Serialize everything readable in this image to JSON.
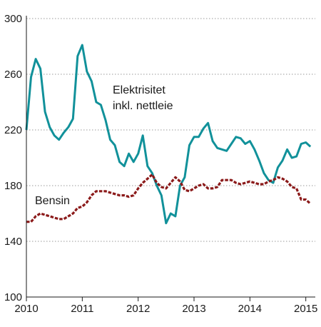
{
  "chart_data": {
    "type": "line",
    "title": "",
    "xlabel": "",
    "ylabel": "",
    "xlim": [
      2010,
      2015.17
    ],
    "ylim": [
      100,
      300
    ],
    "grid": "horizontal dotted",
    "y_ticks": [
      100,
      140,
      180,
      220,
      260,
      300
    ],
    "x_ticks": [
      2010,
      2011,
      2012,
      2013,
      2014,
      2015
    ],
    "y_tick_labels": [
      "100",
      "140",
      "180",
      "220",
      "260",
      "300"
    ],
    "x_tick_labels": [
      "2010",
      "2011",
      "2012",
      "2013",
      "2014",
      "2015"
    ],
    "annotations": [
      {
        "series": "elektrisitet",
        "lines": [
          "Elektrisitet",
          "inkl. nettleie"
        ]
      },
      {
        "series": "bensin",
        "lines": [
          "Bensin"
        ]
      }
    ],
    "series": [
      {
        "name": "Elektrisitet inkl. nettleie",
        "key": "elektrisitet",
        "color": "#11919a",
        "style": "solid",
        "x": [
          2010.0,
          2010.083,
          2010.167,
          2010.25,
          2010.333,
          2010.417,
          2010.5,
          2010.583,
          2010.667,
          2010.75,
          2010.833,
          2010.917,
          2011.0,
          2011.083,
          2011.167,
          2011.25,
          2011.333,
          2011.417,
          2011.5,
          2011.583,
          2011.667,
          2011.75,
          2011.833,
          2011.917,
          2012.0,
          2012.083,
          2012.167,
          2012.25,
          2012.333,
          2012.417,
          2012.5,
          2012.583,
          2012.667,
          2012.75,
          2012.833,
          2012.917,
          2013.0,
          2013.083,
          2013.167,
          2013.25,
          2013.333,
          2013.417,
          2013.5,
          2013.583,
          2013.667,
          2013.75,
          2013.833,
          2013.917,
          2014.0,
          2014.083,
          2014.167,
          2014.25,
          2014.333,
          2014.417,
          2014.5,
          2014.583,
          2014.667,
          2014.75,
          2014.833,
          2014.917,
          2015.0,
          2015.083
        ],
        "values": [
          220,
          258,
          271,
          264,
          233,
          222,
          216,
          213,
          218,
          222,
          228,
          273,
          281,
          262,
          255,
          240,
          238,
          227,
          213,
          209,
          197,
          194,
          203,
          197,
          203,
          216,
          194,
          189,
          180,
          173,
          153,
          160,
          158,
          180,
          186,
          209,
          215,
          215,
          221,
          225,
          212,
          207,
          206,
          205,
          210,
          215,
          214,
          210,
          212,
          206,
          198,
          189,
          184,
          182,
          193,
          198,
          206,
          200,
          201,
          210,
          211,
          208
        ]
      },
      {
        "name": "Bensin",
        "key": "bensin",
        "color": "#8b1a1a",
        "style": "dashed",
        "x": [
          2010.0,
          2010.083,
          2010.167,
          2010.25,
          2010.333,
          2010.417,
          2010.5,
          2010.583,
          2010.667,
          2010.75,
          2010.833,
          2010.917,
          2011.0,
          2011.083,
          2011.167,
          2011.25,
          2011.333,
          2011.417,
          2011.5,
          2011.583,
          2011.667,
          2011.75,
          2011.833,
          2011.917,
          2012.0,
          2012.083,
          2012.167,
          2012.25,
          2012.333,
          2012.417,
          2012.5,
          2012.583,
          2012.667,
          2012.75,
          2012.833,
          2012.917,
          2013.0,
          2013.083,
          2013.167,
          2013.25,
          2013.333,
          2013.417,
          2013.5,
          2013.583,
          2013.667,
          2013.75,
          2013.833,
          2013.917,
          2014.0,
          2014.083,
          2014.167,
          2014.25,
          2014.333,
          2014.417,
          2014.5,
          2014.583,
          2014.667,
          2014.75,
          2014.833,
          2014.917,
          2015.0,
          2015.083
        ],
        "values": [
          154,
          154,
          158,
          160,
          159,
          158,
          157,
          156,
          156,
          158,
          160,
          164,
          165,
          168,
          173,
          176,
          176,
          176,
          175,
          174,
          173,
          173,
          172,
          173,
          178,
          182,
          185,
          188,
          182,
          179,
          178,
          182,
          186,
          183,
          177,
          176,
          178,
          180,
          181,
          178,
          178,
          179,
          184,
          184,
          184,
          182,
          181,
          182,
          183,
          182,
          181,
          181,
          183,
          184,
          186,
          185,
          183,
          179,
          178,
          170,
          170,
          167
        ]
      }
    ]
  }
}
